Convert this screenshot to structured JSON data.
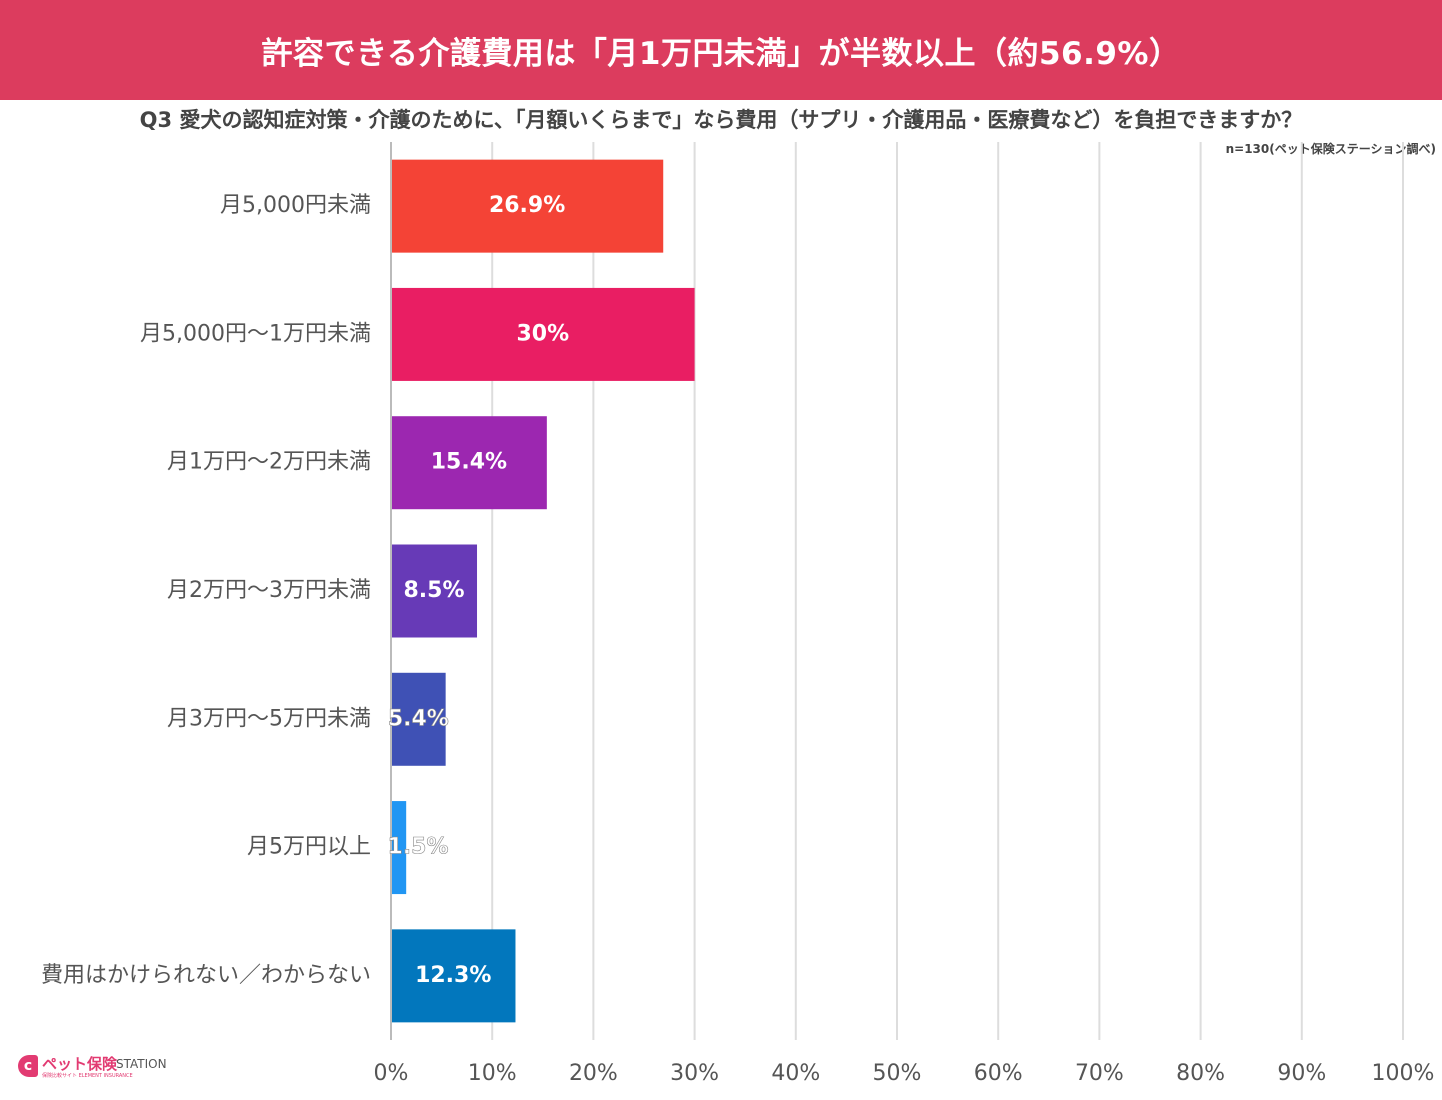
{
  "header": {
    "title": "許容できる介護費用は「月1万円未満」が半数以上（約56.9%）",
    "question": "Q3 愛犬の認知症対策・介護のために、「月額いくらまで」なら費用（サプリ・介護用品・医療費など）を負担できますか？",
    "note": "n=130(ペット保険ステーション調べ)"
  },
  "logo": {
    "main": "ペット保険",
    "station": "STATION",
    "sub": "保険比較サイト  ELEMENT INSURANCE"
  },
  "colors": {
    "banner": "#dc3c5e",
    "grid": "#dddddd",
    "axis": "#bbbbbb"
  },
  "chart_data": {
    "type": "bar",
    "orientation": "horizontal",
    "categories": [
      "月5,000円未満",
      "月5,000円〜1万円未満",
      "月1万円〜2万円未満",
      "月2万円〜3万円未満",
      "月3万円〜5万円未満",
      "月5万円以上",
      "費用はかけられない／わからない"
    ],
    "values": [
      26.9,
      30,
      15.4,
      8.5,
      5.4,
      1.5,
      12.3
    ],
    "data_labels": [
      "26.9%",
      "30%",
      "15.4%",
      "8.5%",
      "5.4%",
      "1.5%",
      "12.3%"
    ],
    "bar_colors": [
      "#f44336",
      "#e91e63",
      "#9c27b0",
      "#673ab7",
      "#3f51b5",
      "#2196f3",
      "#0277bd"
    ],
    "xlim": [
      0,
      100
    ],
    "x_ticks": [
      0,
      10,
      20,
      30,
      40,
      50,
      60,
      70,
      80,
      90,
      100
    ],
    "x_tick_labels": [
      "0%",
      "10%",
      "20%",
      "30%",
      "40%",
      "50%",
      "60%",
      "70%",
      "80%",
      "90%",
      "100%"
    ],
    "grid": true,
    "legend": "none"
  }
}
